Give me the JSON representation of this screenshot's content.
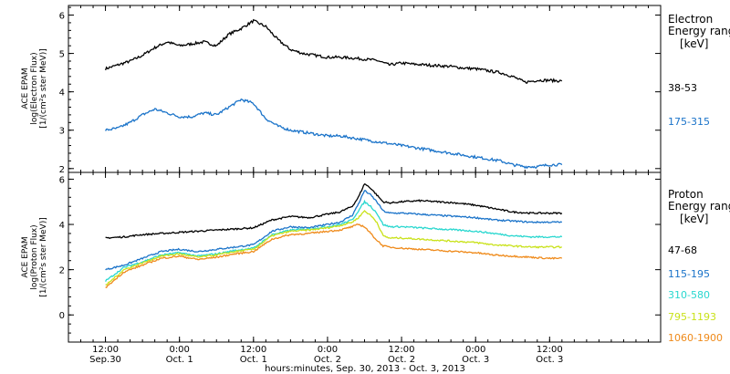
{
  "chart_data": [
    {
      "type": "line",
      "panel": "electron",
      "ylabel_lines": [
        "ACE EPAM",
        "log(Electron Flux)",
        "[1/(cm²s ster MeV)]"
      ],
      "ylim": [
        1.9,
        6.25
      ],
      "yticks": [
        2,
        3,
        4,
        5,
        6
      ],
      "legend_title": [
        "Electron",
        "Energy ranges"
      ],
      "legend_unit": "[keV]",
      "series": [
        {
          "name": "38-53",
          "color": "#000000",
          "x": [
            0,
            2,
            4,
            6,
            8,
            10,
            12,
            14,
            16,
            18,
            20,
            22,
            24,
            26,
            28,
            30,
            32,
            34,
            36,
            38,
            40,
            42,
            44,
            46,
            48,
            50,
            52,
            54,
            56,
            58,
            60,
            62,
            64,
            66,
            68,
            70,
            72,
            74
          ],
          "y": [
            4.6,
            4.7,
            4.8,
            4.95,
            5.15,
            5.3,
            5.2,
            5.25,
            5.3,
            5.2,
            5.5,
            5.65,
            5.85,
            5.7,
            5.35,
            5.1,
            5.0,
            4.95,
            4.9,
            4.9,
            4.88,
            4.85,
            4.82,
            4.7,
            4.75,
            4.72,
            4.7,
            4.68,
            4.66,
            4.62,
            4.6,
            4.55,
            4.5,
            4.4,
            4.25,
            4.3,
            4.3,
            4.28
          ]
        },
        {
          "name": "175-315",
          "color": "#1a73c9",
          "x": [
            0,
            2,
            4,
            6,
            8,
            10,
            12,
            14,
            16,
            18,
            20,
            22,
            24,
            26,
            28,
            30,
            32,
            34,
            36,
            38,
            40,
            42,
            44,
            46,
            48,
            50,
            52,
            54,
            56,
            58,
            60,
            62,
            64,
            66,
            68,
            70,
            72,
            74
          ],
          "y": [
            3.0,
            3.05,
            3.2,
            3.4,
            3.55,
            3.45,
            3.35,
            3.35,
            3.45,
            3.4,
            3.6,
            3.8,
            3.7,
            3.3,
            3.1,
            3.0,
            2.95,
            2.9,
            2.85,
            2.85,
            2.8,
            2.75,
            2.7,
            2.65,
            2.6,
            2.55,
            2.5,
            2.45,
            2.4,
            2.35,
            2.3,
            2.25,
            2.2,
            2.1,
            2.05,
            2.05,
            2.1,
            2.1
          ]
        }
      ]
    },
    {
      "type": "line",
      "panel": "proton",
      "ylabel_lines": [
        "ACE EPAM",
        "log(Proton Flux)",
        "[1/(cm²s ster MeV)]"
      ],
      "ylim": [
        -1.2,
        6.3
      ],
      "yticks": [
        0,
        2,
        4,
        6
      ],
      "legend_title": [
        "Proton",
        "Energy ranges"
      ],
      "legend_unit": "[keV]",
      "series": [
        {
          "name": "47-68",
          "color": "#000000",
          "x": [
            0,
            3,
            6,
            9,
            12,
            15,
            18,
            21,
            24,
            27,
            30,
            33,
            36,
            38,
            40,
            41,
            42,
            43,
            44,
            45,
            46,
            48,
            51,
            54,
            57,
            60,
            63,
            66,
            69,
            72,
            74
          ],
          "y": [
            3.4,
            3.45,
            3.55,
            3.6,
            3.65,
            3.7,
            3.75,
            3.8,
            3.85,
            4.2,
            4.35,
            4.3,
            4.45,
            4.55,
            4.8,
            5.2,
            5.8,
            5.6,
            5.3,
            5.0,
            4.95,
            5.0,
            5.05,
            5.0,
            4.95,
            4.85,
            4.7,
            4.55,
            4.5,
            4.5,
            4.5
          ]
        },
        {
          "name": "115-195",
          "color": "#1a73c9",
          "x": [
            0,
            3,
            6,
            9,
            12,
            15,
            18,
            21,
            24,
            27,
            30,
            33,
            36,
            38,
            40,
            41,
            42,
            43,
            44,
            45,
            46,
            48,
            51,
            54,
            57,
            60,
            63,
            66,
            69,
            72,
            74
          ],
          "y": [
            2.0,
            2.2,
            2.5,
            2.8,
            2.9,
            2.8,
            2.9,
            3.0,
            3.1,
            3.7,
            3.9,
            3.85,
            4.0,
            4.1,
            4.4,
            4.9,
            5.5,
            5.3,
            5.0,
            4.6,
            4.5,
            4.5,
            4.45,
            4.4,
            4.35,
            4.3,
            4.2,
            4.15,
            4.1,
            4.1,
            4.1
          ]
        },
        {
          "name": "310-580",
          "color": "#28d7cf",
          "x": [
            0,
            3,
            6,
            9,
            12,
            15,
            18,
            21,
            24,
            27,
            30,
            33,
            36,
            38,
            40,
            41,
            42,
            43,
            44,
            45,
            46,
            48,
            51,
            54,
            57,
            60,
            63,
            66,
            69,
            72,
            74
          ],
          "y": [
            1.5,
            2.1,
            2.35,
            2.65,
            2.75,
            2.6,
            2.7,
            2.85,
            2.95,
            3.55,
            3.75,
            3.8,
            3.9,
            4.0,
            4.2,
            4.6,
            5.0,
            4.8,
            4.5,
            4.0,
            3.9,
            3.9,
            3.85,
            3.8,
            3.75,
            3.7,
            3.6,
            3.5,
            3.45,
            3.45,
            3.45
          ]
        },
        {
          "name": "795-1193",
          "color": "#c9e21a",
          "x": [
            0,
            3,
            6,
            9,
            12,
            15,
            18,
            21,
            24,
            27,
            30,
            33,
            36,
            38,
            40,
            41,
            42,
            43,
            44,
            45,
            46,
            48,
            51,
            54,
            57,
            60,
            63,
            66,
            69,
            72,
            74
          ],
          "y": [
            1.3,
            2.0,
            2.3,
            2.6,
            2.7,
            2.55,
            2.65,
            2.8,
            2.9,
            3.5,
            3.7,
            3.75,
            3.85,
            3.95,
            4.1,
            4.3,
            4.6,
            4.4,
            4.1,
            3.5,
            3.4,
            3.4,
            3.35,
            3.3,
            3.25,
            3.2,
            3.1,
            3.05,
            3.0,
            3.0,
            3.0
          ]
        },
        {
          "name": "1060-1900",
          "color": "#ef8a1a",
          "x": [
            0,
            3,
            6,
            9,
            12,
            15,
            18,
            21,
            24,
            27,
            30,
            33,
            36,
            38,
            40,
            41,
            42,
            43,
            44,
            45,
            46,
            48,
            51,
            54,
            57,
            60,
            63,
            66,
            69,
            72,
            74
          ],
          "y": [
            1.2,
            1.9,
            2.2,
            2.5,
            2.6,
            2.45,
            2.55,
            2.7,
            2.8,
            3.35,
            3.55,
            3.6,
            3.7,
            3.75,
            3.9,
            4.0,
            3.9,
            3.6,
            3.3,
            3.05,
            3.0,
            2.95,
            2.9,
            2.85,
            2.8,
            2.75,
            2.65,
            2.6,
            2.55,
            2.5,
            2.5
          ]
        }
      ]
    }
  ],
  "x_axis": {
    "xlim": [
      -6,
      90
    ],
    "ticks": [
      {
        "x": 0,
        "time": "12:00",
        "date": "Sep.30"
      },
      {
        "x": 12,
        "time": "0:00",
        "date": "Oct. 1"
      },
      {
        "x": 24,
        "time": "12:00",
        "date": "Oct. 1"
      },
      {
        "x": 36,
        "time": "0:00",
        "date": "Oct. 2"
      },
      {
        "x": 48,
        "time": "12:00",
        "date": "Oct. 2"
      },
      {
        "x": 60,
        "time": "0:00",
        "date": "Oct. 3"
      },
      {
        "x": 72,
        "time": "12:00",
        "date": "Oct. 3"
      }
    ],
    "xlabel": "hours:minutes, Sep. 30, 2013 - Oct.  3, 2013"
  }
}
